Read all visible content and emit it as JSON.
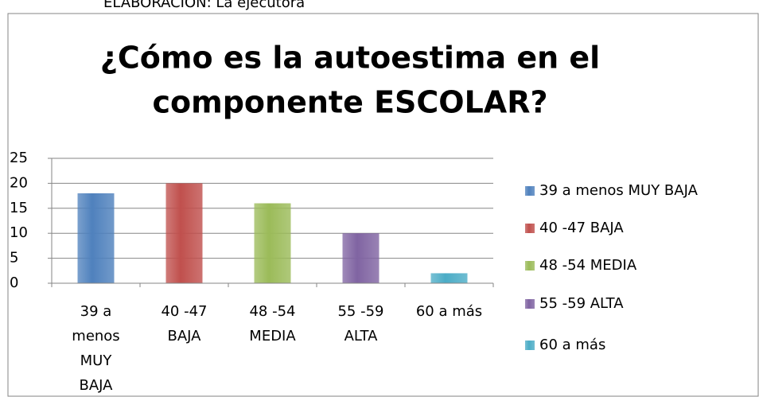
{
  "caption": "ELABORACIÓN: La ejecutora",
  "chart_data": {
    "type": "bar",
    "title": [
      "¿Cómo es la autoestima en el",
      "componente ESCOLAR?"
    ],
    "categories": [
      "39 a menos MUY BAJA",
      "40 -47 BAJA",
      "48 -54 MEDIA",
      "55 -59 ALTA",
      "60 a más"
    ],
    "series": [
      {
        "name": "39 a menos MUY BAJA",
        "color": "#4f81bd",
        "values": [
          18,
          null,
          null,
          null,
          null
        ]
      },
      {
        "name": "40 -47 BAJA",
        "color": "#c0504d",
        "values": [
          null,
          20,
          null,
          null,
          null
        ]
      },
      {
        "name": "48 -54 MEDIA",
        "color": "#9bbb59",
        "values": [
          null,
          null,
          16,
          null,
          null
        ]
      },
      {
        "name": "55 -59 ALTA",
        "color": "#8064a2",
        "values": [
          null,
          null,
          null,
          10,
          null
        ]
      },
      {
        "name": "60 a más",
        "color": "#4bacc6",
        "values": [
          null,
          null,
          null,
          null,
          2
        ]
      }
    ],
    "ylim": [
      0,
      25
    ],
    "yticks": [
      0,
      5,
      10,
      15,
      20,
      25
    ],
    "grid": true,
    "legend": "right"
  }
}
